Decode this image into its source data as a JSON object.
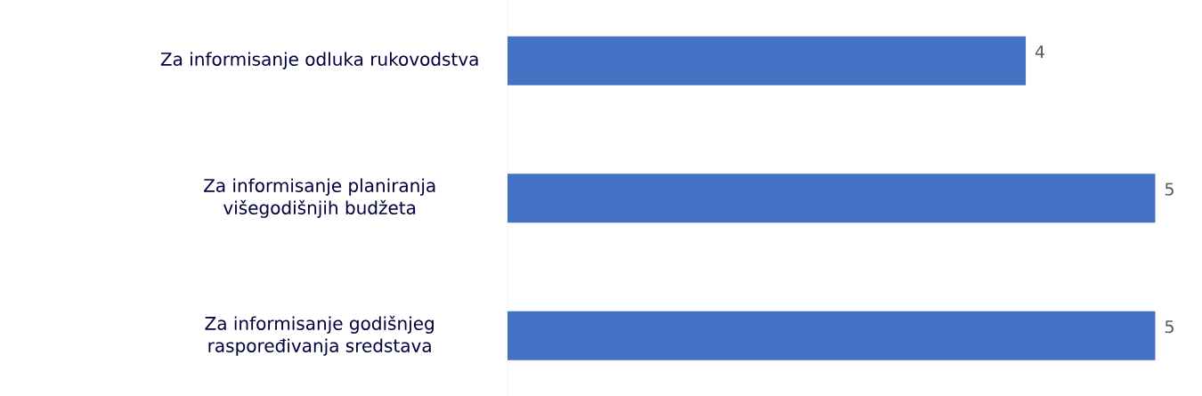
{
  "chart_data": {
    "type": "bar",
    "orientation": "horizontal",
    "categories": [
      "Za informisanje odluka rukovodstva",
      "Za informisanje planiranja višegodišnjih budžeta",
      "Za informisanje godišnjeg raspoređivanja sredstava"
    ],
    "values": [
      4,
      5,
      5
    ],
    "color": "#4472c4",
    "data_labels": true
  }
}
